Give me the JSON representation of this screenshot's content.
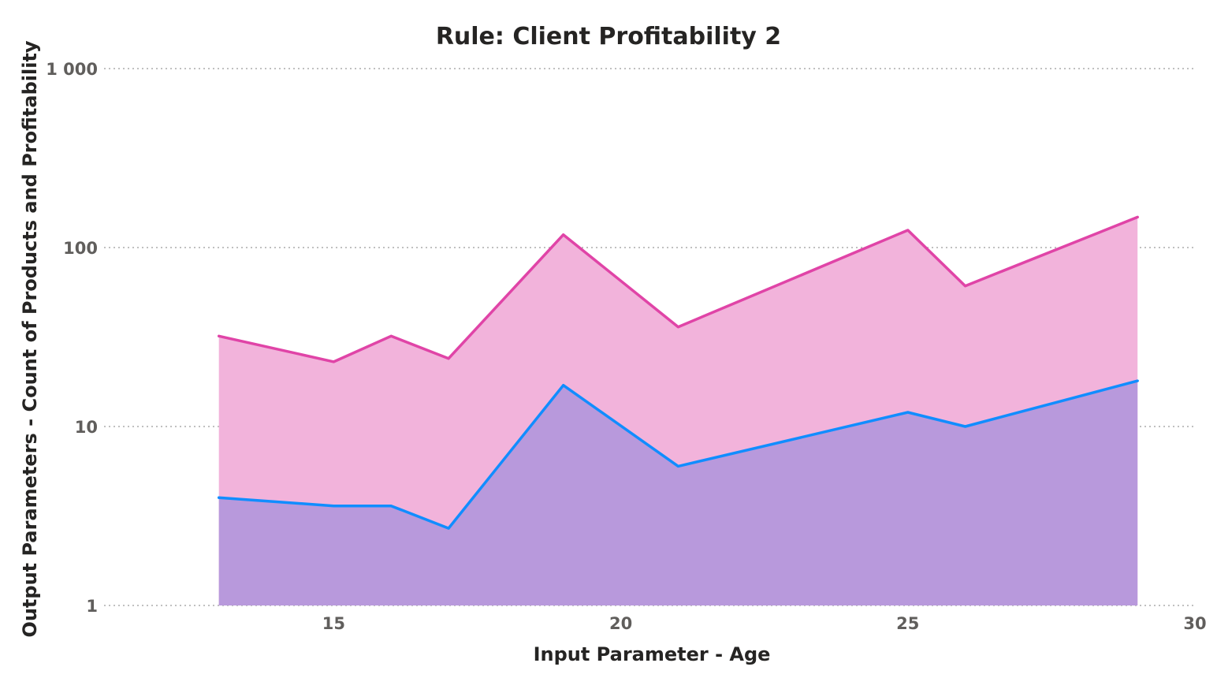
{
  "chart_data": {
    "type": "area",
    "title": "Rule: Client Profitability 2",
    "xlabel": "Input Parameter - Age",
    "ylabel": "Output Parameters - Count of Products and Profitability",
    "y_scale": "log",
    "xlim": [
      11,
      30
    ],
    "ylim": [
      1,
      1000
    ],
    "x_ticks": [
      15,
      20,
      25,
      30
    ],
    "x_tick_labels": [
      "15",
      "20",
      "25",
      "30"
    ],
    "y_ticks": [
      1,
      10,
      100,
      1000
    ],
    "y_tick_labels": [
      "1",
      "10",
      "100",
      "1 000"
    ],
    "grid": true,
    "legend": "none",
    "x": [
      13,
      15,
      16,
      17,
      19,
      21,
      25,
      26,
      29
    ],
    "series": [
      {
        "values": [
          32,
          23,
          32,
          24,
          118,
          36,
          125,
          61,
          148
        ],
        "color": "#e044a7",
        "fill": "#f2b3db"
      },
      {
        "values": [
          4,
          3.6,
          3.6,
          2.7,
          17,
          6,
          12,
          10,
          18
        ],
        "color": "#118dff",
        "fill": "#b899dc"
      }
    ]
  }
}
